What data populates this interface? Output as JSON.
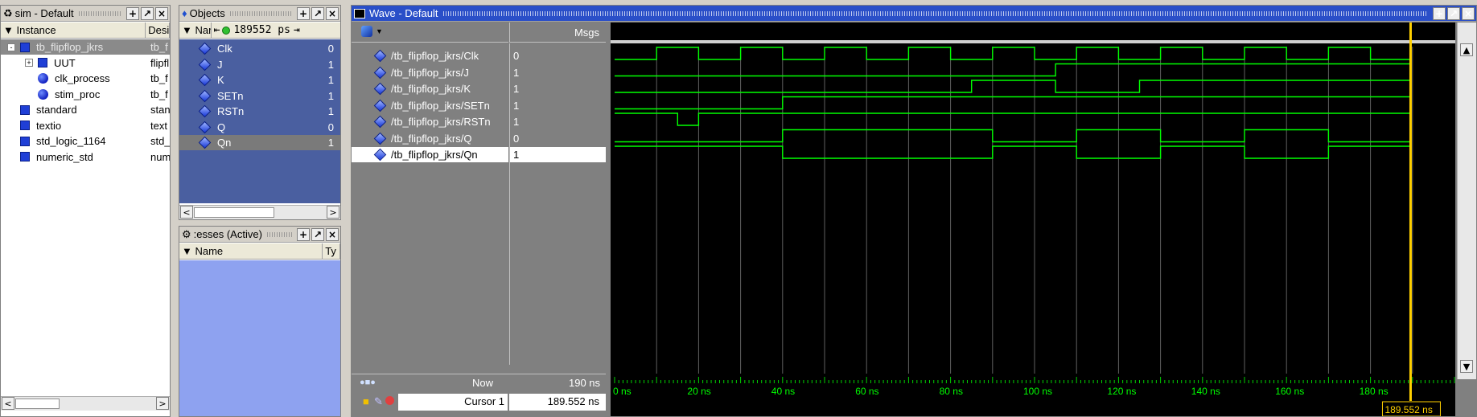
{
  "sim_panel": {
    "title": "sim - Default",
    "col_instance": "Instance",
    "col_design": "Desi",
    "rows": [
      {
        "name": "tb_flipflop_jkrs",
        "design": "tb_f",
        "icon": "square",
        "indent": 0,
        "expander": "-",
        "selected": true
      },
      {
        "name": "UUT",
        "design": "flipfl",
        "icon": "square",
        "indent": 1,
        "expander": "+",
        "selected": false
      },
      {
        "name": "clk_process",
        "design": "tb_f",
        "icon": "circle",
        "indent": 1,
        "expander": "",
        "selected": false
      },
      {
        "name": "stim_proc",
        "design": "tb_f",
        "icon": "circle",
        "indent": 1,
        "expander": "",
        "selected": false
      },
      {
        "name": "standard",
        "design": "stan",
        "icon": "square",
        "indent": 0,
        "expander": "",
        "selected": false
      },
      {
        "name": "textio",
        "design": "text",
        "icon": "square",
        "indent": 0,
        "expander": "",
        "selected": false
      },
      {
        "name": "std_logic_1164",
        "design": "std_",
        "icon": "square",
        "indent": 0,
        "expander": "",
        "selected": false
      },
      {
        "name": "numeric_std",
        "design": "num",
        "icon": "square",
        "indent": 0,
        "expander": "",
        "selected": false
      }
    ]
  },
  "objects_panel": {
    "title": "Objects",
    "col_name": "Nam",
    "time": "189552 ps",
    "rows": [
      {
        "name": "Clk",
        "value": "0"
      },
      {
        "name": "J",
        "value": "1"
      },
      {
        "name": "K",
        "value": "1"
      },
      {
        "name": "SETn",
        "value": "1"
      },
      {
        "name": "RSTn",
        "value": "1"
      },
      {
        "name": "Q",
        "value": "0"
      },
      {
        "name": "Qn",
        "value": "1"
      }
    ]
  },
  "processes_panel": {
    "title": ":esses (Active)",
    "col_name": "Name",
    "col_type": "Ty"
  },
  "wave_panel": {
    "title": "Wave - Default",
    "msgs_header": "Msgs",
    "signals": [
      {
        "name": "/tb_flipflop_jkrs/Clk",
        "value": "0"
      },
      {
        "name": "/tb_flipflop_jkrs/J",
        "value": "1"
      },
      {
        "name": "/tb_flipflop_jkrs/K",
        "value": "1"
      },
      {
        "name": "/tb_flipflop_jkrs/SETn",
        "value": "1"
      },
      {
        "name": "/tb_flipflop_jkrs/RSTn",
        "value": "1"
      },
      {
        "name": "/tb_flipflop_jkrs/Q",
        "value": "0"
      },
      {
        "name": "/tb_flipflop_jkrs/Qn",
        "value": "1"
      }
    ],
    "now_label": "Now",
    "now_value": "190 ns",
    "cursor_label": "Cursor 1",
    "cursor_value": "189.552 ns",
    "cursor_flag": "189.552 ns",
    "time_ticks": [
      "0 ns",
      "20 ns",
      "40 ns",
      "60 ns",
      "80 ns",
      "100 ns",
      "120 ns",
      "140 ns",
      "160 ns",
      "180 ns"
    ],
    "wave_color": "#00ff00",
    "cursor_color": "#ffd000"
  },
  "chart_data": {
    "type": "line",
    "title": "",
    "xlabel": "",
    "ylabel": "",
    "xlim": [
      0,
      200
    ],
    "time_unit": "ns",
    "cursor_time": 189.552,
    "series": [
      {
        "name": "/tb_flipflop_jkrs/Clk",
        "transitions": [
          [
            0,
            0
          ],
          [
            10,
            1
          ],
          [
            20,
            0
          ],
          [
            30,
            1
          ],
          [
            40,
            0
          ],
          [
            50,
            1
          ],
          [
            60,
            0
          ],
          [
            70,
            1
          ],
          [
            80,
            0
          ],
          [
            90,
            1
          ],
          [
            100,
            0
          ],
          [
            110,
            1
          ],
          [
            120,
            0
          ],
          [
            130,
            1
          ],
          [
            140,
            0
          ],
          [
            150,
            1
          ],
          [
            160,
            0
          ],
          [
            170,
            1
          ],
          [
            180,
            0
          ]
        ]
      },
      {
        "name": "/tb_flipflop_jkrs/J",
        "transitions": [
          [
            0,
            0
          ],
          [
            105,
            1
          ]
        ]
      },
      {
        "name": "/tb_flipflop_jkrs/K",
        "transitions": [
          [
            0,
            0
          ],
          [
            85,
            1
          ],
          [
            105,
            0
          ],
          [
            125,
            1
          ]
        ]
      },
      {
        "name": "/tb_flipflop_jkrs/SETn",
        "transitions": [
          [
            0,
            0
          ],
          [
            40,
            1
          ],
          [
            45,
            1
          ]
        ]
      },
      {
        "name": "/tb_flipflop_jkrs/RSTn",
        "transitions": [
          [
            0,
            1
          ],
          [
            15,
            0
          ],
          [
            20,
            1
          ]
        ]
      },
      {
        "name": "/tb_flipflop_jkrs/Q",
        "transitions": [
          [
            0,
            0
          ],
          [
            40,
            1
          ],
          [
            90,
            0
          ],
          [
            110,
            1
          ],
          [
            130,
            0
          ],
          [
            150,
            1
          ],
          [
            170,
            0
          ]
        ]
      },
      {
        "name": "/tb_flipflop_jkrs/Qn",
        "transitions": [
          [
            0,
            1
          ],
          [
            40,
            0
          ],
          [
            90,
            1
          ],
          [
            110,
            0
          ],
          [
            130,
            1
          ],
          [
            150,
            0
          ],
          [
            170,
            1
          ]
        ]
      }
    ]
  }
}
